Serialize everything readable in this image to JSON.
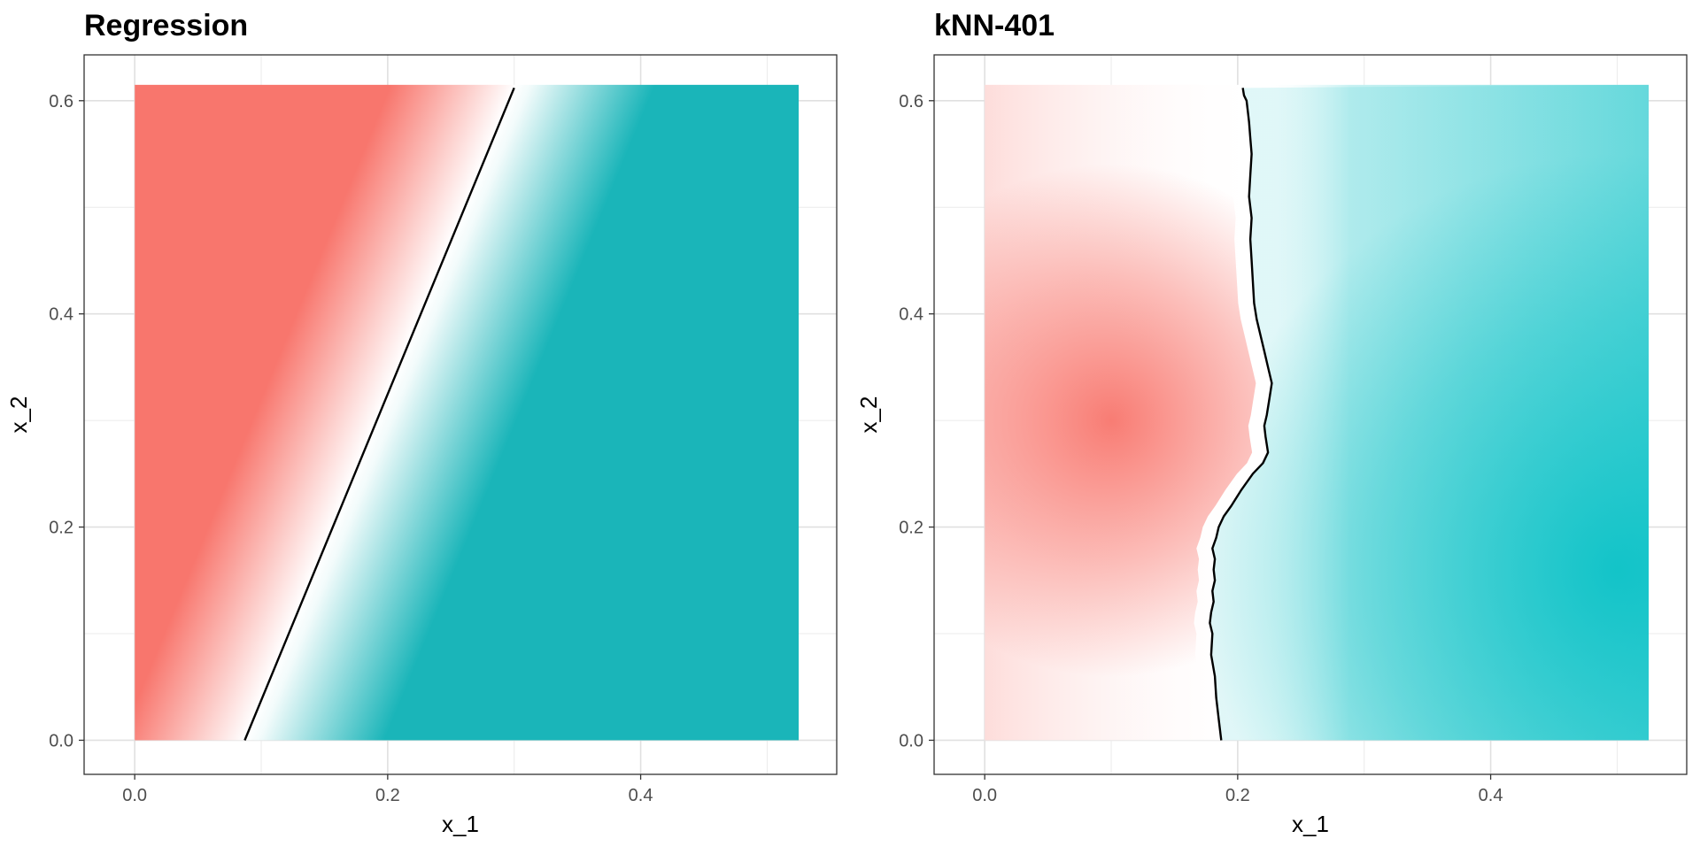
{
  "chart_data": [
    {
      "type": "heatmap",
      "title": "Regression",
      "xlabel": "x_1",
      "ylabel": "x_2",
      "xlim": [
        -0.04,
        0.555
      ],
      "ylim": [
        -0.032,
        0.643
      ],
      "xticks": [
        0.0,
        0.2,
        0.4
      ],
      "xtick_labels": [
        "0.0",
        "0.2",
        "0.4"
      ],
      "yticks": [
        0.0,
        0.2,
        0.4,
        0.6
      ],
      "ytick_labels": [
        "0.0",
        "0.2",
        "0.4",
        "0.6"
      ],
      "grid": true,
      "x_range": [
        0.0,
        0.525
      ],
      "y_range": [
        0.0,
        0.615
      ],
      "colors": {
        "class_a": "#F8766D",
        "class_b": "#00BFC4",
        "neutral": "#FFFFFF",
        "boundary": "#000000"
      },
      "boundary": {
        "x": [
          0.087,
          0.3
        ],
        "y": [
          0.0,
          0.612
        ]
      }
    },
    {
      "type": "heatmap",
      "title": "kNN-401",
      "xlabel": "x_1",
      "ylabel": "x_2",
      "xlim": [
        -0.04,
        0.555
      ],
      "ylim": [
        -0.032,
        0.643
      ],
      "xticks": [
        0.0,
        0.2,
        0.4
      ],
      "xtick_labels": [
        "0.0",
        "0.2",
        "0.4"
      ],
      "yticks": [
        0.0,
        0.2,
        0.4,
        0.6
      ],
      "ytick_labels": [
        "0.0",
        "0.2",
        "0.4",
        "0.6"
      ],
      "grid": true,
      "x_range": [
        0.0,
        0.525
      ],
      "y_range": [
        0.0,
        0.615
      ],
      "colors": {
        "class_a": "#F8766D",
        "class_b": "#00BFC4",
        "neutral": "#FFFFFF",
        "boundary": "#000000"
      },
      "boundary": {
        "x": [
          0.187,
          0.185,
          0.183,
          0.182,
          0.179,
          0.18,
          0.178,
          0.179,
          0.181,
          0.18,
          0.182,
          0.181,
          0.182,
          0.18,
          0.183,
          0.185,
          0.189,
          0.195,
          0.203,
          0.212,
          0.22,
          0.224,
          0.222,
          0.221,
          0.223,
          0.225,
          0.227,
          0.224,
          0.221,
          0.218,
          0.215,
          0.213,
          0.212,
          0.211,
          0.21,
          0.211,
          0.209,
          0.21,
          0.211,
          0.21,
          0.209,
          0.208,
          0.207,
          0.205,
          0.204
        ],
        "y": [
          0.0,
          0.02,
          0.04,
          0.06,
          0.08,
          0.1,
          0.11,
          0.12,
          0.13,
          0.14,
          0.15,
          0.16,
          0.17,
          0.18,
          0.19,
          0.2,
          0.21,
          0.22,
          0.235,
          0.25,
          0.26,
          0.27,
          0.285,
          0.295,
          0.305,
          0.32,
          0.335,
          0.35,
          0.365,
          0.38,
          0.395,
          0.41,
          0.43,
          0.45,
          0.47,
          0.49,
          0.51,
          0.53,
          0.55,
          0.565,
          0.58,
          0.59,
          0.6,
          0.605,
          0.612
        ]
      }
    }
  ]
}
